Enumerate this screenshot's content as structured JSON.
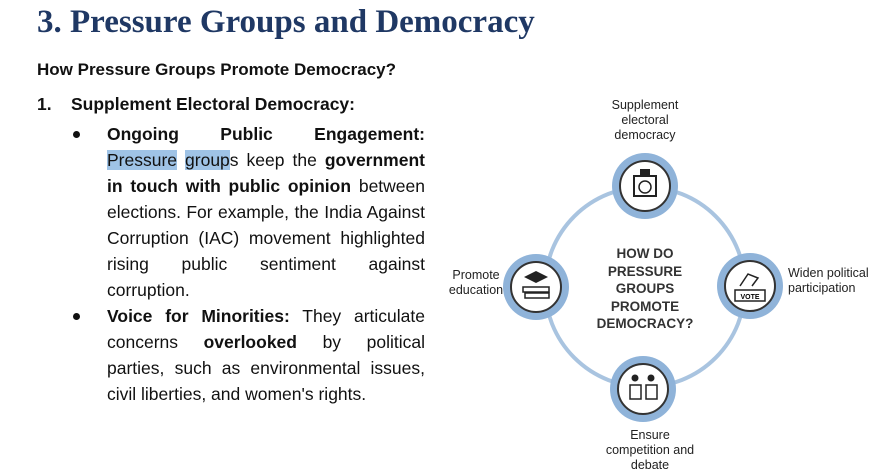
{
  "heading": "3. Pressure Groups and Democracy",
  "subheading": "How Pressure Groups Promote Democracy?",
  "list": {
    "number": "1.",
    "title": "Supplement Electoral Democracy:",
    "bullets": [
      {
        "label": "Ongoing Public Engagement:",
        "segments": [
          " ",
          "Pressure",
          " ",
          "group",
          "s keep the ",
          "government in touch with public opinion",
          " between elections. For example, the India Against Corruption (IAC) movement highlighted rising public sentiment against corruption."
        ]
      },
      {
        "label": "Voice for Minorities:",
        "segments": [
          " They articulate concerns ",
          "overlooked",
          " by political parties, such as environmental issues, civil liberties, and women's rights."
        ]
      }
    ]
  },
  "diagram": {
    "center": "HOW DO PRESSURE GROUPS PROMOTE DEMOCRACY?",
    "nodes": [
      "Supplement electoral democracy",
      "Widen political participation",
      "Ensure competition and debate",
      "Promote education"
    ]
  }
}
